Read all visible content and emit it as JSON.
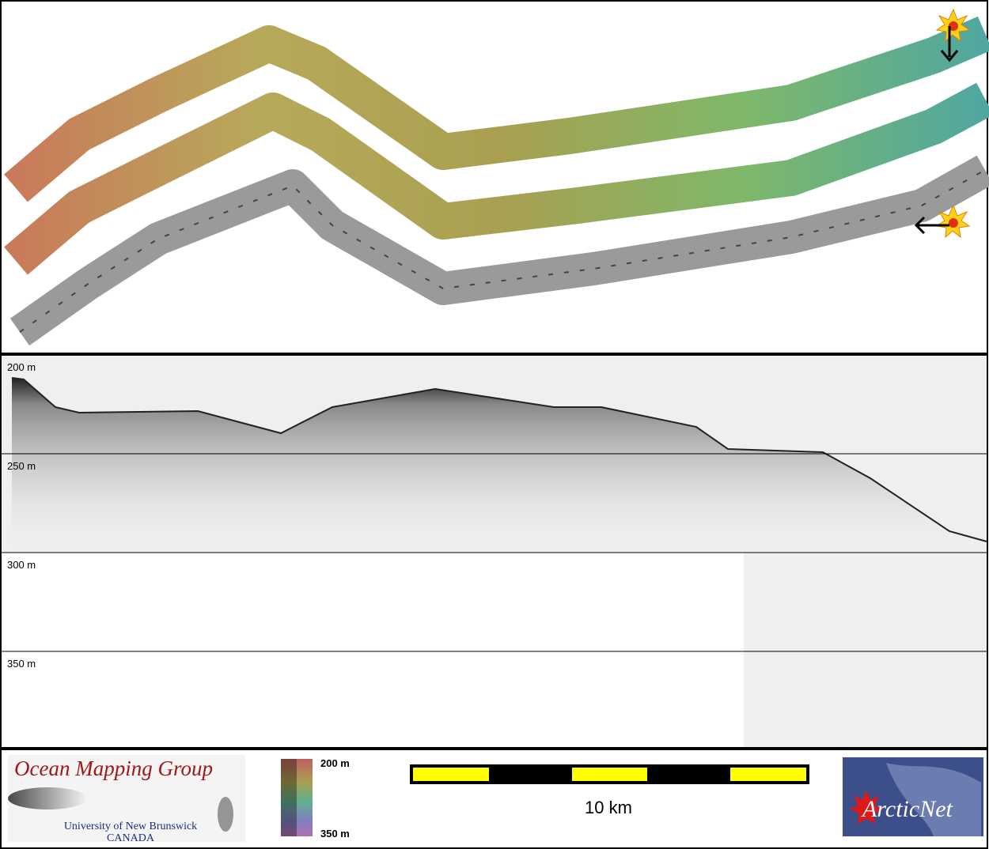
{
  "map_panel": {
    "markers": 2
  },
  "profile_panel": {
    "depth_labels": [
      "200 m",
      "250 m",
      "300 m",
      "350 m"
    ]
  },
  "footer": {
    "logo_left": {
      "title": "Ocean Mapping Group",
      "line1": "University of New Brunswick",
      "line2": "CANADA"
    },
    "color_scale": {
      "top": "200 m",
      "bottom": "350 m"
    },
    "scale_bar": {
      "label": "10 km"
    },
    "logo_right": {
      "title": "ArcticNet"
    }
  }
}
